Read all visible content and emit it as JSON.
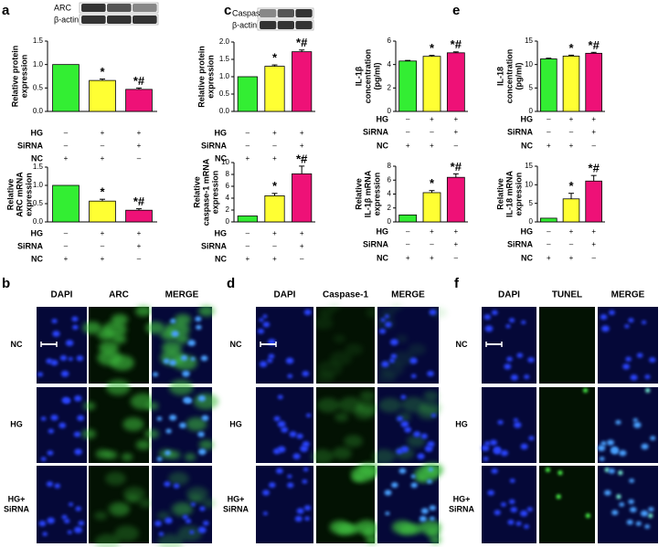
{
  "chart_data": [
    {
      "type": "bar",
      "panel": "a",
      "blot_labels": [
        "ARC",
        "β-actin"
      ],
      "ylabel": [
        "Relative protein",
        "expression"
      ],
      "values": [
        1.0,
        0.66,
        0.47
      ],
      "errors": [
        0,
        0.03,
        0.03
      ],
      "annotations": [
        null,
        "*",
        "*#"
      ],
      "colors": [
        "#33ee33",
        "#ffff33",
        "#ee1177"
      ],
      "ylim": [
        0,
        1.5
      ],
      "yticks": [
        {
          "value": 0,
          "label": "0.0"
        },
        {
          "value": 0.5,
          "label": "0.5"
        },
        {
          "value": 1,
          "label": "1.0"
        },
        {
          "value": 1.5,
          "label": "1.5"
        }
      ],
      "conditions": [
        {
          "name": "HG",
          "marks": [
            "–",
            "+",
            "+"
          ]
        },
        {
          "name": "SiRNA",
          "marks": [
            "–",
            "–",
            "+"
          ]
        },
        {
          "name": "NC",
          "marks": [
            "+",
            "+",
            "–"
          ]
        }
      ]
    },
    {
      "type": "bar",
      "ylabel": [
        "Relative",
        "ARC mRNA",
        "expression"
      ],
      "values": [
        1.0,
        0.57,
        0.32
      ],
      "errors": [
        0,
        0.05,
        0.04
      ],
      "annotations": [
        null,
        "*",
        "*#"
      ],
      "colors": [
        "#33ee33",
        "#ffff33",
        "#ee1177"
      ],
      "ylim": [
        0,
        1.5
      ],
      "yticks": [
        {
          "value": 0,
          "label": "0.0"
        },
        {
          "value": 0.5,
          "label": "0.5"
        },
        {
          "value": 1,
          "label": "1.0"
        },
        {
          "value": 1.5,
          "label": "1.5"
        }
      ],
      "conditions": [
        {
          "name": "HG",
          "marks": [
            "–",
            "+",
            "+"
          ]
        },
        {
          "name": "SiRNA",
          "marks": [
            "–",
            "–",
            "+"
          ]
        },
        {
          "name": "NC",
          "marks": [
            "+",
            "+",
            "–"
          ]
        }
      ]
    },
    {
      "type": "bar",
      "panel": "c",
      "blot_labels": [
        "Caspase-1",
        "β-actin"
      ],
      "ylabel": [
        "Relative protein",
        "expression"
      ],
      "values": [
        1.0,
        1.3,
        1.72
      ],
      "errors": [
        0,
        0.04,
        0.05
      ],
      "annotations": [
        null,
        "*",
        "*#"
      ],
      "colors": [
        "#33ee33",
        "#ffff33",
        "#ee1177"
      ],
      "ylim": [
        0,
        2
      ],
      "yticks": [
        {
          "value": 0,
          "label": "0.0"
        },
        {
          "value": 0.5,
          "label": "0.5"
        },
        {
          "value": 1,
          "label": "1.0"
        },
        {
          "value": 1.5,
          "label": "1.5"
        },
        {
          "value": 2,
          "label": "2.0"
        }
      ],
      "conditions": [
        {
          "name": "HG",
          "marks": [
            "–",
            "+",
            "+"
          ]
        },
        {
          "name": "SiRNA",
          "marks": [
            "–",
            "–",
            "+"
          ]
        },
        {
          "name": "NC",
          "marks": [
            "+",
            "+",
            "–"
          ]
        }
      ]
    },
    {
      "type": "bar",
      "ylabel": [
        "Relative",
        "caspase-1 mRNA",
        "expression"
      ],
      "values": [
        1,
        4.4,
        8.1
      ],
      "errors": [
        0,
        0.4,
        1.3
      ],
      "annotations": [
        null,
        "*",
        "*#"
      ],
      "colors": [
        "#33ee33",
        "#ffff33",
        "#ee1177"
      ],
      "ylim": [
        0,
        10
      ],
      "yticks": [
        0,
        2,
        4,
        6,
        8,
        10
      ],
      "conditions": [
        {
          "name": "HG",
          "marks": [
            "–",
            "+",
            "+"
          ]
        },
        {
          "name": "SiRNA",
          "marks": [
            "–",
            "–",
            "+"
          ]
        },
        {
          "name": "NC",
          "marks": [
            "+",
            "+",
            "–"
          ]
        }
      ]
    },
    {
      "type": "bar",
      "panel": "e",
      "ylabel": [
        "IL-1β",
        "concentration",
        "(pg/ml)"
      ],
      "values": [
        4.3,
        4.7,
        5.0
      ],
      "errors": [
        0.05,
        0.08,
        0.08
      ],
      "annotations": [
        null,
        "*",
        "*#"
      ],
      "colors": [
        "#33ee33",
        "#ffff33",
        "#ee1177"
      ],
      "ylim": [
        0,
        6
      ],
      "yticks": [
        0,
        2,
        4,
        6
      ],
      "conditions": [
        {
          "name": "HG",
          "marks": [
            "–",
            "+",
            "+"
          ]
        },
        {
          "name": "SiRNA",
          "marks": [
            "–",
            "–",
            "+"
          ]
        },
        {
          "name": "NC",
          "marks": [
            "+",
            "+",
            "–"
          ]
        }
      ]
    },
    {
      "type": "bar",
      "ylabel": [
        "IL-18",
        "concentration",
        "(pg/ml)"
      ],
      "values": [
        11.2,
        11.8,
        12.4
      ],
      "errors": [
        0.15,
        0.2,
        0.2
      ],
      "annotations": [
        null,
        "*",
        "*#"
      ],
      "colors": [
        "#33ee33",
        "#ffff33",
        "#ee1177"
      ],
      "ylim": [
        0,
        15
      ],
      "yticks": [
        0,
        5,
        10,
        15
      ],
      "conditions": [
        {
          "name": "HG",
          "marks": [
            "–",
            "+",
            "+"
          ]
        },
        {
          "name": "SiRNA",
          "marks": [
            "–",
            "–",
            "+"
          ]
        },
        {
          "name": "NC",
          "marks": [
            "+",
            "+",
            "–"
          ]
        }
      ]
    },
    {
      "type": "bar",
      "ylabel": [
        "Relative",
        "IL-1β mRNA",
        "expression"
      ],
      "values": [
        1,
        4.2,
        6.4
      ],
      "errors": [
        0,
        0.3,
        0.5
      ],
      "annotations": [
        null,
        "*",
        "*#"
      ],
      "colors": [
        "#33ee33",
        "#ffff33",
        "#ee1177"
      ],
      "ylim": [
        0,
        8
      ],
      "yticks": [
        0,
        2,
        4,
        6,
        8
      ],
      "conditions": [
        {
          "name": "HG",
          "marks": [
            "–",
            "+",
            "+"
          ]
        },
        {
          "name": "SiRNA",
          "marks": [
            "–",
            "–",
            "+"
          ]
        },
        {
          "name": "NC",
          "marks": [
            "+",
            "+",
            "–"
          ]
        }
      ]
    },
    {
      "type": "bar",
      "ylabel": [
        "Relative",
        "IL-18 mRNA",
        "expression"
      ],
      "values": [
        1,
        6.2,
        11
      ],
      "errors": [
        0,
        1.5,
        1.5
      ],
      "annotations": [
        null,
        "*",
        "*#"
      ],
      "colors": [
        "#33ee33",
        "#ffff33",
        "#ee1177"
      ],
      "ylim": [
        0,
        15
      ],
      "yticks": [
        0,
        5,
        10,
        15
      ],
      "conditions": [
        {
          "name": "HG",
          "marks": [
            "–",
            "+",
            "+"
          ]
        },
        {
          "name": "SiRNA",
          "marks": [
            "–",
            "–",
            "+"
          ]
        },
        {
          "name": "NC",
          "marks": [
            "+",
            "+",
            "–"
          ]
        }
      ]
    }
  ],
  "image_panels": [
    {
      "panel": "b",
      "columns": [
        "DAPI",
        "ARC",
        "MERGE"
      ],
      "rows": [
        [
          "NC"
        ],
        [
          "HG"
        ],
        [
          "HG+",
          "SiRNA"
        ]
      ]
    },
    {
      "panel": "d",
      "columns": [
        "DAPI",
        "Caspase-1",
        "MERGE"
      ],
      "rows": [
        [
          "NC"
        ],
        [
          "HG"
        ],
        [
          "HG+",
          "SiRNA"
        ]
      ]
    },
    {
      "panel": "f",
      "columns": [
        "DAPI",
        "TUNEL",
        "MERGE"
      ],
      "rows": [
        [
          "NC"
        ],
        [
          "HG"
        ],
        [
          "HG+",
          "SiRNA"
        ]
      ]
    }
  ]
}
